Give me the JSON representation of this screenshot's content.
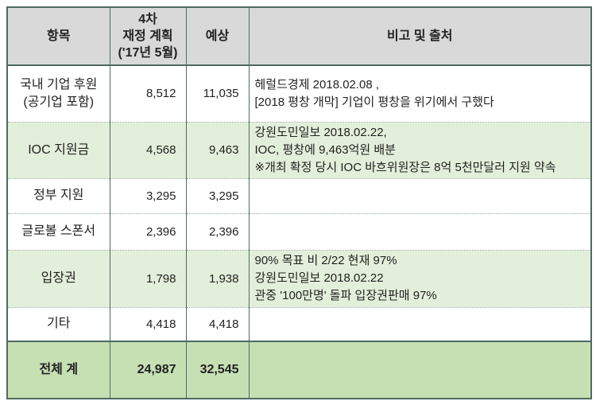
{
  "colors": {
    "header_bg": "#d9d9d9",
    "green_row": "#e2efda",
    "total_bg": "#c6e0b4",
    "border_solid": "#4e6a60",
    "border_dotted": "#8fa89b",
    "text": "#222222"
  },
  "table": {
    "headers": {
      "item": "항목",
      "plan": "4차\n재정 계획\n('17년 5월)",
      "expected": "예상",
      "remark": "비고 및 출처"
    },
    "rows": [
      {
        "item": "국내 기업 후원\n(공기업 포함)",
        "plan": "8,512",
        "expected": "11,035",
        "remark": "헤럴드경제 2018.02.08 ,\n[2018 평창 개막] 기업이 평창을 위기에서 구했다",
        "highlight": false
      },
      {
        "item": "IOC 지원금",
        "plan": "4,568",
        "expected": "9,463",
        "remark": "강원도민일보 2018.02.22,\nIOC, 평창에 9,463억원 배분\n※개최 확정 당시 IOC 바흐위원장은 8억 5천만달러 지원 약속",
        "highlight": true
      },
      {
        "item": "정부 지원",
        "plan": "3,295",
        "expected": "3,295",
        "remark": "",
        "highlight": false
      },
      {
        "item": "글로볼 스폰서",
        "plan": "2,396",
        "expected": "2,396",
        "remark": "",
        "highlight": false
      },
      {
        "item": "입장권",
        "plan": "1,798",
        "expected": "1,938",
        "remark": "90% 목표 비 2/22 현재 97%\n강원도민일보 2018.02.22\n관중 '100만명' 돌파 입장권판매 97%",
        "highlight": true
      },
      {
        "item": "기타",
        "plan": "4,418",
        "expected": "4,418",
        "remark": "",
        "highlight": false
      }
    ],
    "total": {
      "item": "전체 계",
      "plan": "24,987",
      "expected": "32,545",
      "remark": ""
    }
  }
}
